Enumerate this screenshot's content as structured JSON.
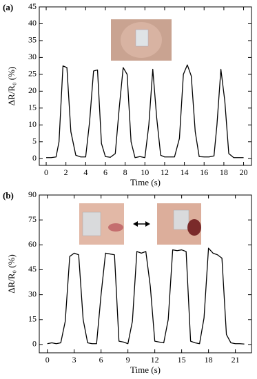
{
  "chart_data": [
    {
      "type": "line",
      "panel": "(a)",
      "xlabel": "Time (s)",
      "ylabel": "ΔR/R₀ (%)",
      "x": [
        0,
        0.5,
        1,
        1.3,
        1.7,
        2.1,
        2.5,
        3,
        3.5,
        4,
        4.4,
        4.8,
        5.2,
        5.6,
        6,
        6.5,
        7,
        7.4,
        7.8,
        8.2,
        8.6,
        9,
        9.5,
        10,
        10.4,
        10.8,
        11.2,
        11.6,
        12,
        12.5,
        13,
        13.5,
        13.9,
        14.3,
        14.7,
        15.1,
        15.5,
        16,
        16.5,
        17,
        17.3,
        17.7,
        18.1,
        18.5,
        19,
        19.5,
        20
      ],
      "values": [
        0.3,
        0.3,
        0.5,
        5,
        27.5,
        27,
        8,
        1,
        0.5,
        0.5,
        11,
        26,
        26.3,
        4.5,
        0.6,
        0.4,
        1.5,
        15,
        27,
        25,
        5,
        0.3,
        0.6,
        0.3,
        10,
        26.5,
        12,
        1,
        0.5,
        0.5,
        0.5,
        6,
        25,
        27.8,
        24.5,
        8,
        0.6,
        0.5,
        0.5,
        0.8,
        10,
        26.5,
        17,
        1.5,
        0.3,
        0.3,
        0.3
      ],
      "color": "#000000",
      "xlim": [
        -0.7,
        20.8
      ],
      "xticks": [
        0,
        2,
        4,
        6,
        8,
        10,
        12,
        14,
        16,
        18,
        20
      ],
      "ylim": [
        -2,
        45
      ],
      "yticks": [
        0,
        5,
        10,
        15,
        20,
        25,
        30,
        35,
        40,
        45
      ]
    },
    {
      "type": "line",
      "panel": "(b)",
      "xlabel": "Time (s)",
      "ylabel": "ΔR/R₀ (%)",
      "x": [
        0,
        0.5,
        1,
        1.5,
        2,
        2.5,
        3,
        3.5,
        4,
        4.5,
        5,
        5.5,
        6,
        6.5,
        7,
        7.5,
        8,
        8.5,
        9,
        9.5,
        10,
        10.5,
        11,
        11.5,
        12,
        12.5,
        13,
        13.5,
        14,
        14.5,
        15,
        15.5,
        16,
        16.5,
        17,
        17.5,
        18,
        18.5,
        19,
        19.5,
        20,
        20.5,
        21,
        21.5,
        22
      ],
      "values": [
        0.5,
        1,
        0.5,
        1,
        14,
        53,
        55,
        54,
        15,
        1,
        0.5,
        0.5,
        30,
        55,
        54.5,
        54,
        2,
        1.5,
        0.5,
        14,
        56,
        55,
        56,
        35,
        2,
        1.5,
        1,
        15,
        57,
        56.5,
        57,
        56,
        2,
        1,
        0.5,
        16,
        58,
        55,
        54,
        52,
        6,
        1,
        0.5,
        0.5,
        0.3
      ],
      "color": "#000000",
      "xlim": [
        -0.9,
        22.8
      ],
      "xticks": [
        0,
        3,
        6,
        9,
        12,
        15,
        18,
        21
      ],
      "ylim": [
        -5,
        90
      ],
      "yticks": [
        0,
        15,
        30,
        45,
        60,
        75,
        90
      ]
    }
  ]
}
